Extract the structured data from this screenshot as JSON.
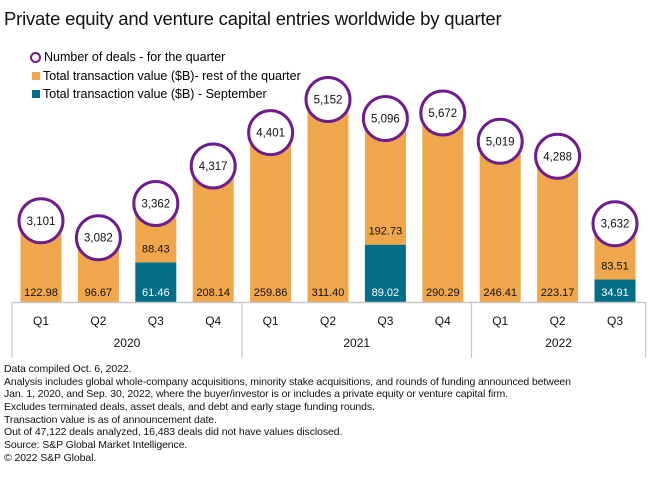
{
  "title": "Private equity and venture capital entries worldwide by quarter",
  "legend": [
    {
      "label": "Number of deals - for the quarter",
      "marker": "circle-outline",
      "color": "#6e1e8c"
    },
    {
      "label": "Total transaction value ($B)- rest of the quarter",
      "marker": "square",
      "color": "#f0a64a"
    },
    {
      "label": "Total transaction value ($B) - September",
      "marker": "square",
      "color": "#046d87"
    }
  ],
  "colors": {
    "rest": "#f0a64a",
    "september": "#046d87",
    "deals": "#6e1e8c",
    "axis": "#c8c8c8"
  },
  "chart_data": {
    "type": "bar",
    "stacked": true,
    "title": "Private equity and venture capital entries worldwide by quarter",
    "xlabel": "",
    "ylabel": "",
    "categories": [
      "Q1",
      "Q2",
      "Q3",
      "Q4",
      "Q1",
      "Q2",
      "Q3",
      "Q4",
      "Q1",
      "Q2",
      "Q3"
    ],
    "groups": [
      {
        "label": "2020",
        "count": 4
      },
      {
        "label": "2021",
        "count": 4
      },
      {
        "label": "2022",
        "count": 3
      }
    ],
    "series": [
      {
        "name": "Total transaction value ($B) - September",
        "values": [
          null,
          null,
          61.46,
          null,
          null,
          null,
          89.02,
          null,
          null,
          null,
          34.91
        ]
      },
      {
        "name": "Total transaction value ($B)- rest of the quarter",
        "values": [
          122.98,
          96.67,
          88.43,
          208.14,
          259.86,
          311.4,
          192.73,
          290.29,
          246.41,
          223.17,
          83.51
        ]
      },
      {
        "name": "Number of deals - for the quarter",
        "type": "circle-label",
        "values": [
          3101,
          3082,
          3362,
          4317,
          4401,
          5152,
          5096,
          5672,
          5019,
          4288,
          3632
        ]
      }
    ],
    "value_labels": {
      "september": [
        "",
        "",
        "61.46",
        "",
        "",
        "",
        "89.02",
        "",
        "",
        "",
        "34.91"
      ],
      "rest": [
        "122.98",
        "96.67",
        "88.43",
        "208.14",
        "259.86",
        "311.40",
        "192.73",
        "290.29",
        "246.41",
        "223.17",
        "83.51"
      ],
      "deals": [
        "3,101",
        "3,082",
        "3,362",
        "4,317",
        "4,401",
        "5,152",
        "5,096",
        "5,672",
        "5,019",
        "4,288",
        "3,632"
      ]
    },
    "ylim": [
      0,
      310
    ],
    "grid": false,
    "legend_position": "top-left"
  },
  "notes": [
    "Data compiled Oct. 6, 2022.",
    "Analysis includes global whole-company acquisitions, minority stake acquisitions, and rounds of funding announced between",
    "Jan. 1, 2020, and Sep. 30, 2022, where the buyer/investor is or includes a private equity or venture capital firm.",
    "Excludes terminated deals, asset deals, and debt and early stage funding rounds.",
    "Transaction value is as of announcement date.",
    "Out of 47,122 deals analyzed, 16,483 deals did not have values disclosed.",
    "Source: S&P Global Market Intelligence.",
    "© 2022 S&P Global."
  ]
}
